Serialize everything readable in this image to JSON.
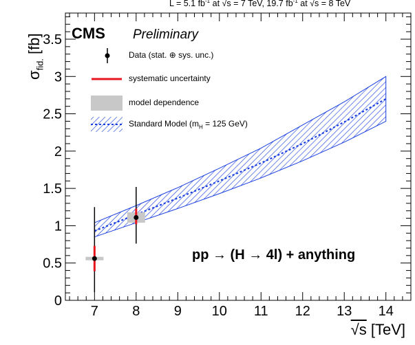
{
  "header": {
    "lumi_prefix": "L = 5.1 fb",
    "lumi_exp1": "-1",
    "lumi_mid1": " at ",
    "lumi_s1": "√s",
    "lumi_mid2": " = 7 TeV, 19.7 fb",
    "lumi_exp2": "-1",
    "lumi_mid3": " at ",
    "lumi_s2": "√s",
    "lumi_suffix": " = 8 TeV"
  },
  "branding": {
    "cms": "CMS",
    "preliminary": "Preliminary"
  },
  "legend": {
    "data": "Data (stat. ⊕ sys. unc.)",
    "systematic": "systematic uncertainty",
    "model": "model dependence",
    "sm": "Standard Model (m",
    "sm_sub": "H",
    "sm_tail": " = 125 GeV)"
  },
  "annotation": "pp → (H → 4l) + anything",
  "axis": {
    "xlabel_main": "√s",
    "xlabel_unit": " [TeV]",
    "ylabel_main": "σ",
    "ylabel_sub": "fid.",
    "ylabel_unit": " [fb]"
  },
  "colors": {
    "band": "#1a3fe0",
    "systematic": "#e8141e",
    "model": "#c8c8c8",
    "data": "#000000"
  },
  "chart_data": {
    "type": "scatter",
    "xlim": [
      6.3,
      14.6
    ],
    "ylim": [
      0,
      3.85
    ],
    "x_ticks": [
      7,
      8,
      9,
      10,
      11,
      12,
      13,
      14
    ],
    "y_ticks": [
      0,
      0.5,
      1,
      1.5,
      2,
      2.5,
      3,
      3.5
    ],
    "y_tick_labels": [
      "0",
      "0.5",
      "1",
      "1.5",
      "2",
      "2.5",
      "3",
      "3.5"
    ],
    "data_points": [
      {
        "x": 7,
        "y": 0.56,
        "err_low": 0.45,
        "err_high": 0.69,
        "sys_low": 0.17,
        "sys_high": 0.17,
        "model_low": 0.01,
        "model_high": 0.01
      },
      {
        "x": 8,
        "y": 1.11,
        "err_low": 0.35,
        "err_high": 0.41,
        "sys_low": 0.09,
        "sys_high": 0.12,
        "model_low": 0.06,
        "model_high": 0.08
      }
    ],
    "sm_band": {
      "x": [
        7,
        8,
        9,
        10,
        11,
        12,
        13,
        14
      ],
      "central": [
        0.93,
        1.15,
        1.37,
        1.6,
        1.84,
        2.1,
        2.39,
        2.7
      ],
      "low": [
        0.85,
        1.04,
        1.23,
        1.43,
        1.64,
        1.87,
        2.12,
        2.4
      ],
      "high": [
        1.04,
        1.27,
        1.51,
        1.77,
        2.04,
        2.35,
        2.66,
        3.0
      ]
    }
  }
}
